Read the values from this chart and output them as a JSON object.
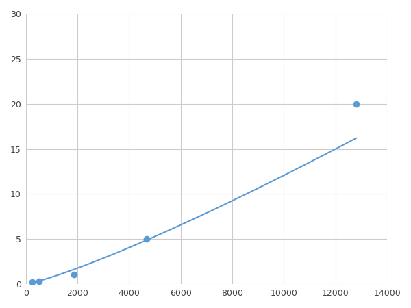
{
  "x_data": [
    250,
    500,
    1875,
    4688,
    12800
  ],
  "y_data": [
    0.2,
    0.3,
    1.1,
    5.0,
    20.0
  ],
  "line_color": "#5b9bd5",
  "marker_color": "#5b9bd5",
  "marker_size": 7,
  "linewidth": 1.5,
  "xlim": [
    0,
    14000
  ],
  "ylim": [
    0,
    30
  ],
  "xticks": [
    0,
    2000,
    4000,
    6000,
    8000,
    10000,
    12000,
    14000
  ],
  "yticks": [
    0,
    5,
    10,
    15,
    20,
    25,
    30
  ],
  "grid_color": "#cccccc",
  "bg_color": "#ffffff",
  "figsize": [
    6.0,
    4.5
  ],
  "dpi": 100
}
